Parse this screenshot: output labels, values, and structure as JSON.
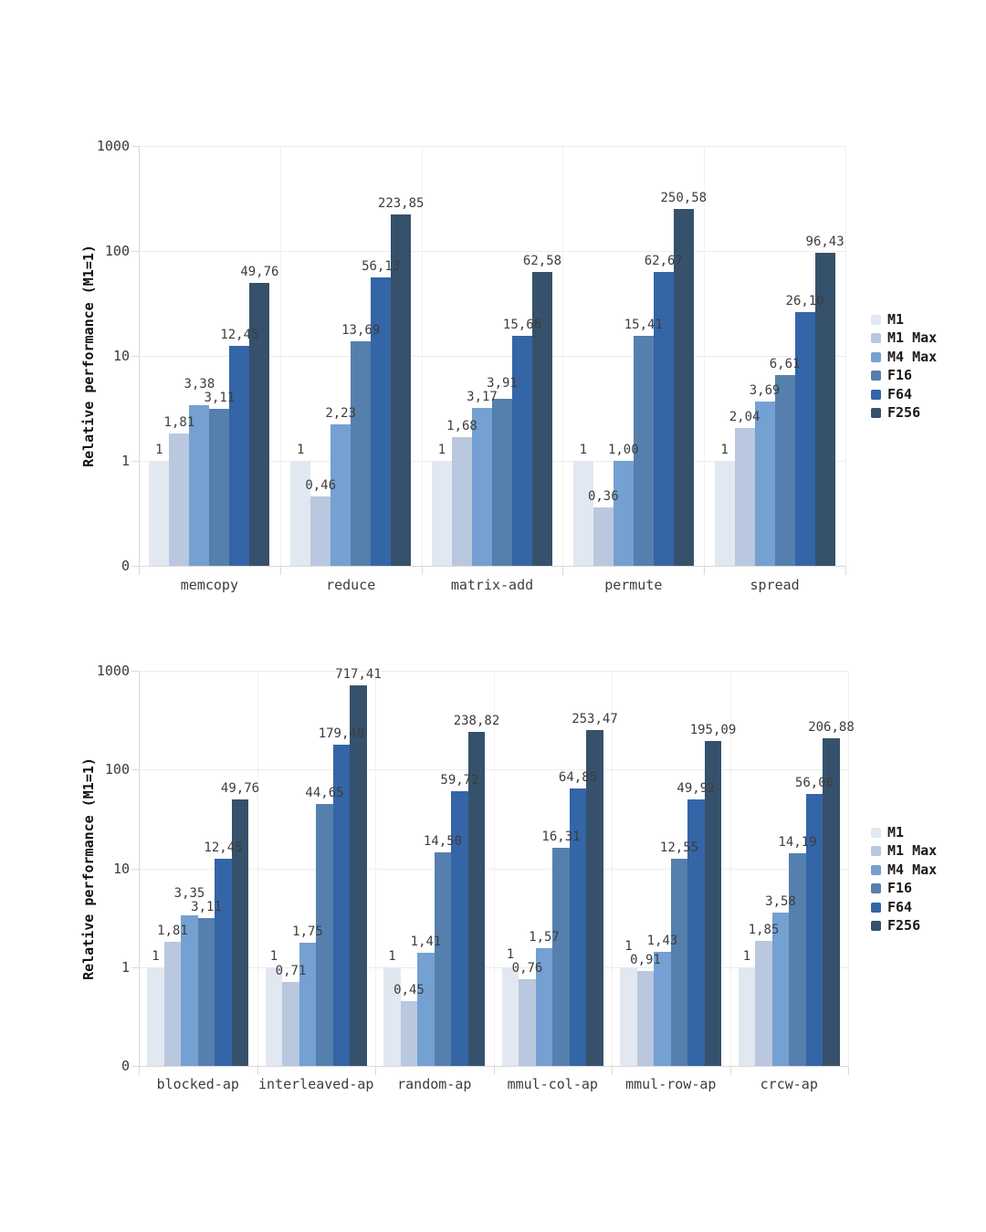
{
  "page": {
    "background": "#ffffff"
  },
  "chart_data": [
    {
      "type": "bar",
      "title": "",
      "ylabel": "Relative performance (M1=1)",
      "y_scale": "log",
      "y_ticks": [
        "1000",
        "100",
        "10",
        "1",
        "0"
      ],
      "y_range": [
        0.1,
        1000
      ],
      "grid": true,
      "legend_position": "right",
      "value_label_decimal_separator": ",",
      "categories": [
        "memcopy",
        "reduce",
        "matrix-add",
        "permute",
        "spread"
      ],
      "series": [
        {
          "name": "M1",
          "color": "#e2e8f1",
          "values": [
            1,
            1,
            1,
            1,
            1
          ],
          "labels": [
            "1",
            "1",
            "1",
            "1",
            "1"
          ]
        },
        {
          "name": "M1 Max",
          "color": "#b9c8de",
          "values": [
            1.81,
            0.46,
            1.68,
            0.36,
            2.04
          ],
          "labels": [
            "1,81",
            "0,46",
            "1,68",
            "0,36",
            "2,04"
          ]
        },
        {
          "name": "M4 Max",
          "color": "#74a0d2",
          "values": [
            3.38,
            2.23,
            3.17,
            1.0,
            3.69
          ],
          "labels": [
            "3,38",
            "2,23",
            "3,17",
            "1,00",
            "3,69"
          ]
        },
        {
          "name": "F16",
          "color": "#5580ad",
          "values": [
            3.11,
            13.69,
            3.91,
            15.41,
            6.61
          ],
          "labels": [
            "3,11",
            "13,69",
            "3,91",
            "15,41",
            "6,61"
          ]
        },
        {
          "name": "F64",
          "color": "#3465a6",
          "values": [
            12.45,
            56.13,
            15.66,
            62.67,
            26.1
          ],
          "labels": [
            "12,45",
            "56,13",
            "15,66",
            "62,67",
            "26,10"
          ]
        },
        {
          "name": "F256",
          "color": "#36516b",
          "values": [
            49.76,
            223.85,
            62.58,
            250.58,
            96.43
          ],
          "labels": [
            "49,76",
            "223,85",
            "62,58",
            "250,58",
            "96,43"
          ]
        }
      ]
    },
    {
      "type": "bar",
      "title": "",
      "ylabel": "Relative performance (M1=1)",
      "y_scale": "log",
      "y_ticks": [
        "1000",
        "100",
        "10",
        "1",
        "0"
      ],
      "y_range": [
        0.1,
        1000
      ],
      "grid": true,
      "legend_position": "right",
      "value_label_decimal_separator": ",",
      "categories": [
        "blocked-ap",
        "interleaved-ap",
        "random-ap",
        "mmul-col-ap",
        "mmul-row-ap",
        "crcw-ap"
      ],
      "series": [
        {
          "name": "M1",
          "color": "#e2e8f1",
          "values": [
            1,
            1,
            1,
            1,
            1,
            1
          ],
          "labels": [
            "1",
            "1",
            "1",
            "1",
            "1",
            "1"
          ]
        },
        {
          "name": "M1 Max",
          "color": "#b9c8de",
          "values": [
            1.81,
            0.71,
            0.45,
            0.76,
            0.91,
            1.85
          ],
          "labels": [
            "1,81",
            "0,71",
            "0,45",
            "0,76",
            "0,91",
            "1,85"
          ]
        },
        {
          "name": "M4 Max",
          "color": "#74a0d2",
          "values": [
            3.35,
            1.75,
            1.41,
            1.57,
            1.43,
            3.58
          ],
          "labels": [
            "3,35",
            "1,75",
            "1,41",
            "1,57",
            "1,43",
            "3,58"
          ]
        },
        {
          "name": "F16",
          "color": "#5580ad",
          "values": [
            3.11,
            44.65,
            14.5,
            16.31,
            12.55,
            14.19
          ],
          "labels": [
            "3,11",
            "44,65",
            "14,50",
            "16,31",
            "12,55",
            "14,19"
          ]
        },
        {
          "name": "F64",
          "color": "#3465a6",
          "values": [
            12.45,
            179.48,
            59.72,
            64.85,
            49.92,
            56.06
          ],
          "labels": [
            "12,45",
            "179,48",
            "59,72",
            "64,85",
            "49,92",
            "56,06"
          ]
        },
        {
          "name": "F256",
          "color": "#36516b",
          "values": [
            49.76,
            717.41,
            238.82,
            253.47,
            195.09,
            206.88
          ],
          "labels": [
            "49,76",
            "717,41",
            "238,82",
            "253,47",
            "195,09",
            "206,88"
          ]
        }
      ]
    }
  ],
  "colors": {
    "grid": "#ececec",
    "grid_vertical": "#f1f1f1",
    "axis": "#d9d9d9",
    "tick_text": "#3b3b3b",
    "value_text": "#3d3d3d",
    "legend_text": "#1a1a1a"
  }
}
